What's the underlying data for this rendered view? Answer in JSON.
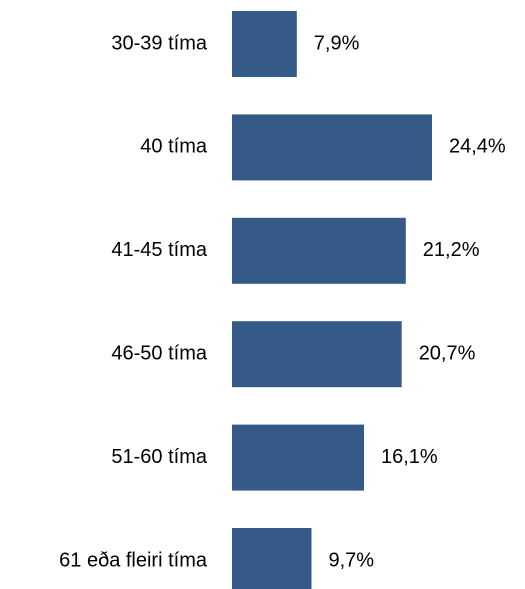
{
  "chart_data": {
    "type": "bar",
    "orientation": "horizontal",
    "categories": [
      "30-39 tíma",
      "40 tíma",
      "41-45 tíma",
      "46-50 tíma",
      "51-60 tíma",
      "61 eða fleiri tíma"
    ],
    "values": [
      7.9,
      24.4,
      21.2,
      20.7,
      16.1,
      9.7
    ],
    "data_labels": [
      "7,9%",
      "24,4%",
      "21,2%",
      "20,7%",
      "16,1%",
      "9,7%"
    ],
    "title": "",
    "xlabel": "",
    "ylabel": "",
    "xlim": [
      0,
      24.4
    ],
    "grid": false,
    "legend": "none",
    "bar_color": "#355a87"
  }
}
